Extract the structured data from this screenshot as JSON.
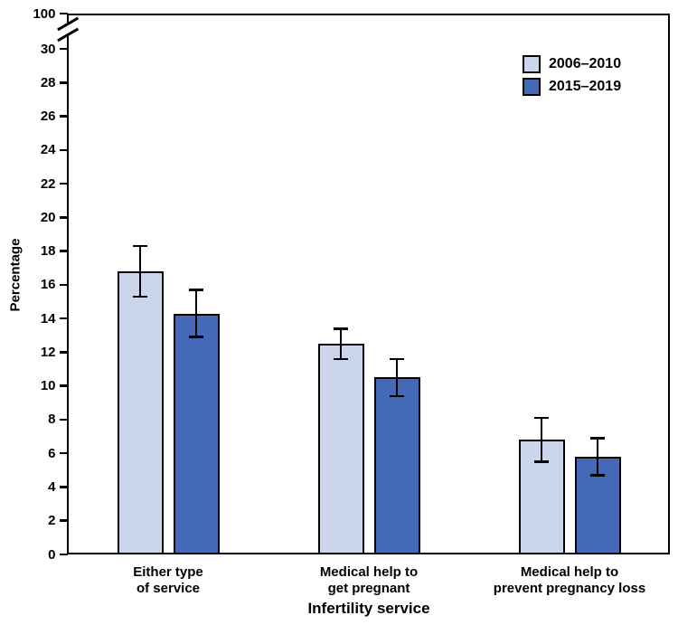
{
  "figure": {
    "background": "#ffffff",
    "line_color": "#000000"
  },
  "chart_data": {
    "type": "bar",
    "title": "",
    "xlabel": "Infertility service",
    "ylabel": "Percentage",
    "categories": [
      [
        "Either type",
        "of service"
      ],
      [
        "Medical help to",
        "get pregnant"
      ],
      [
        "Medical help to",
        "prevent pregnancy loss"
      ]
    ],
    "series": [
      {
        "name": "2006–2010",
        "color": "#CBD5EC",
        "values": [
          16.8,
          12.5,
          6.8
        ],
        "ci_low": [
          15.3,
          11.6,
          5.5
        ],
        "ci_high": [
          18.3,
          13.4,
          8.1
        ]
      },
      {
        "name": "2015–2019",
        "color": "#4469B7",
        "values": [
          14.3,
          10.5,
          5.8
        ],
        "ci_low": [
          12.9,
          9.4,
          4.7
        ],
        "ci_high": [
          15.7,
          11.6,
          6.9
        ]
      }
    ],
    "yticks": [
      0,
      2,
      4,
      6,
      8,
      10,
      12,
      14,
      16,
      18,
      20,
      22,
      24,
      26,
      28,
      30
    ],
    "y_break_top_label": "100",
    "ylim": [
      0,
      30
    ],
    "axis_break": true,
    "error_bars": true,
    "grid": false,
    "legend_position": "top-right"
  }
}
